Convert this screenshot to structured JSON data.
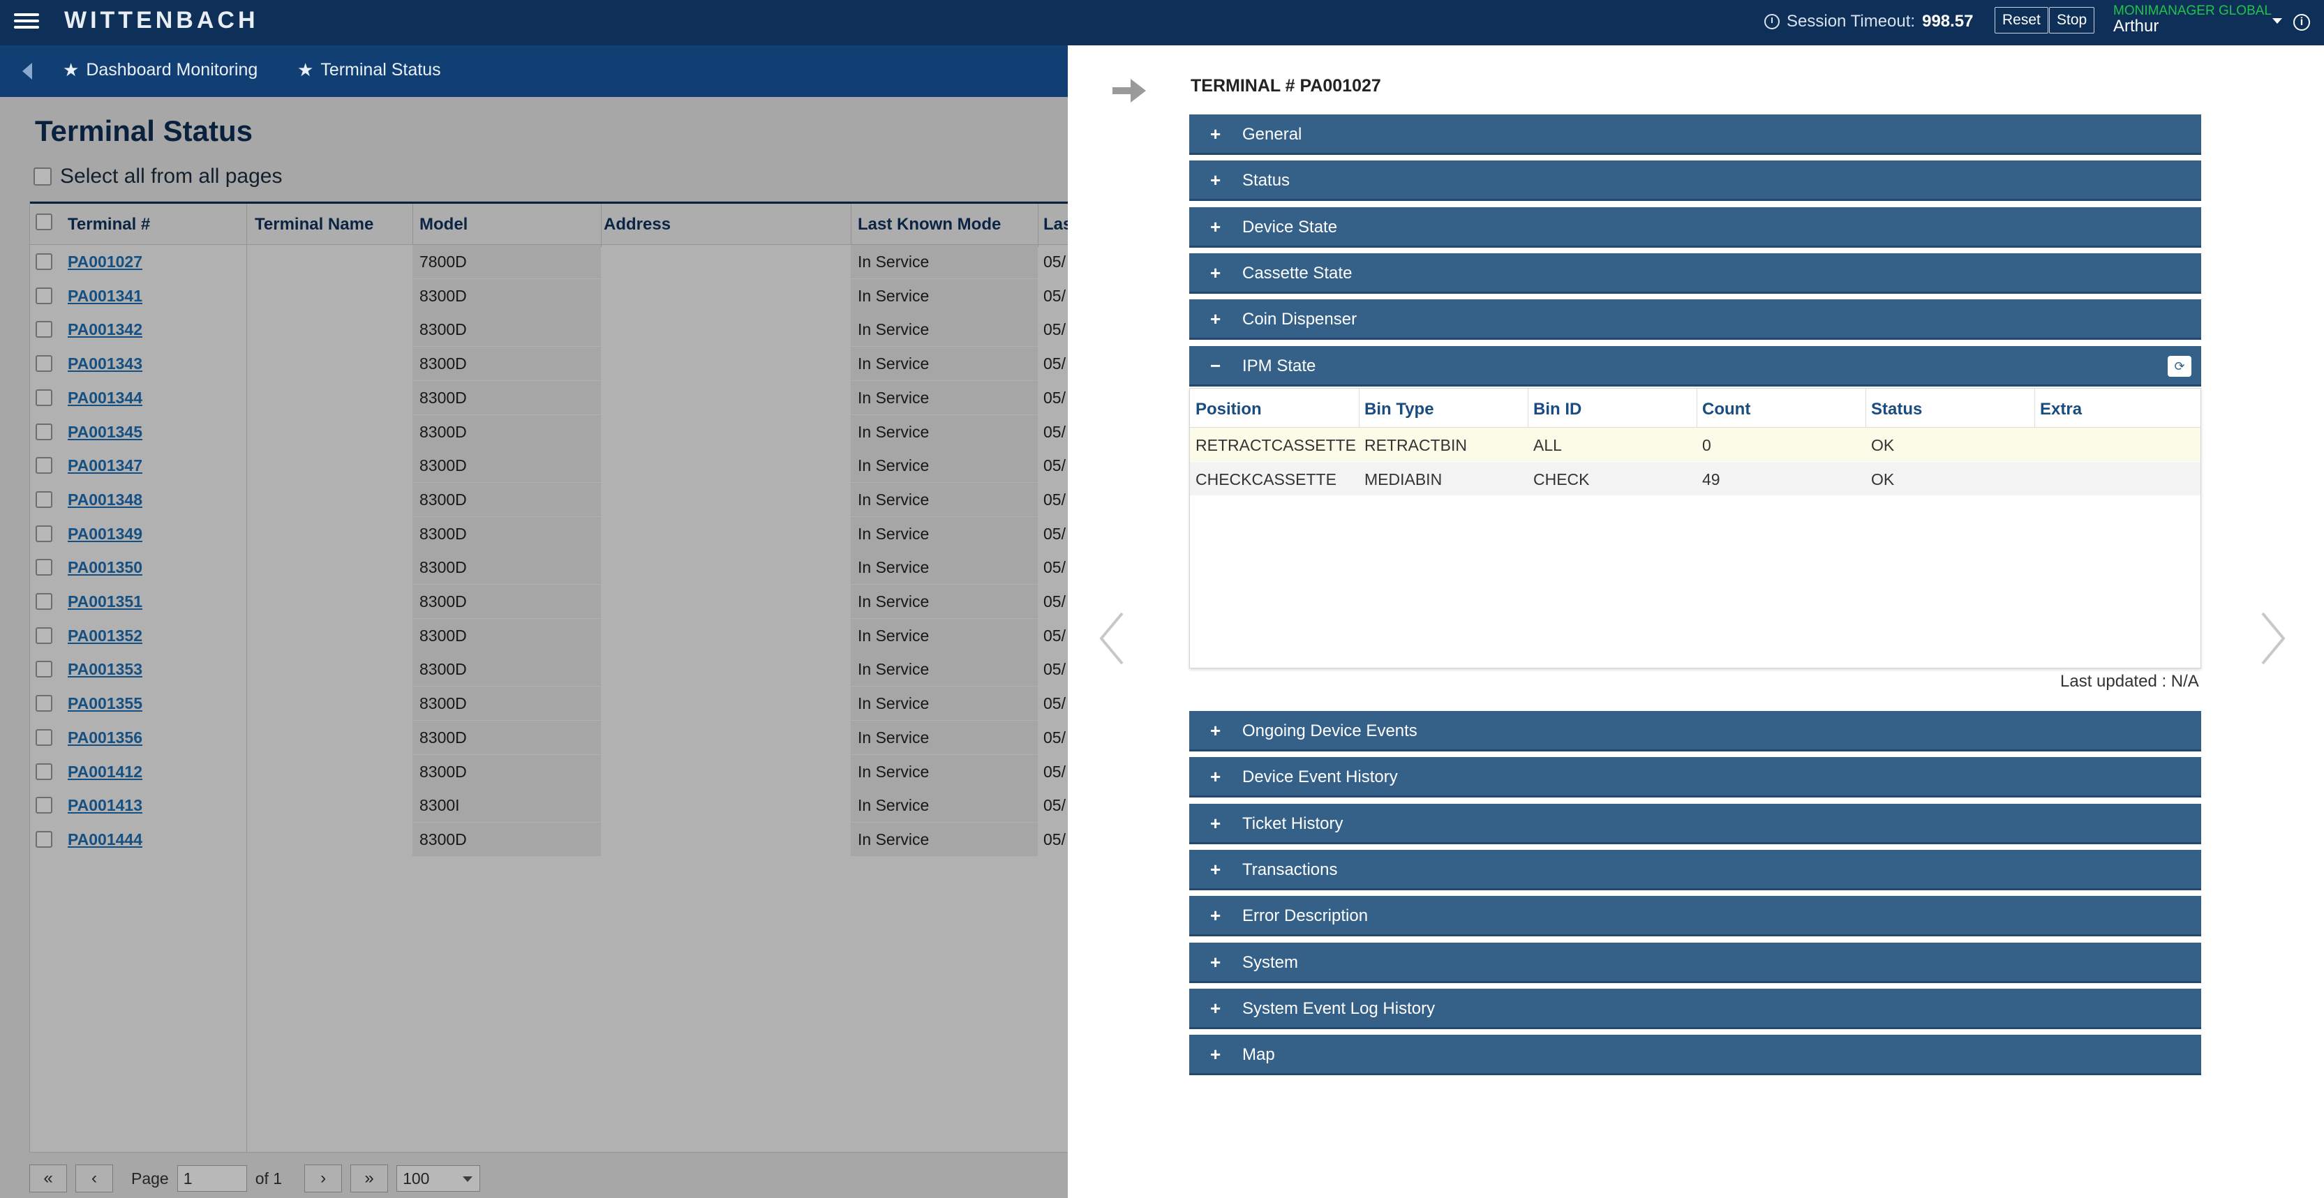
{
  "header": {
    "logo": "WITTENBACH",
    "session_label": "Session Timeout:",
    "session_value": "998.57",
    "reset": "Reset",
    "stop": "Stop",
    "org": "MONIMANAGER GLOBAL",
    "user": "Arthur"
  },
  "breadcrumb": [
    "Dashboard Monitoring",
    "Terminal Status"
  ],
  "page": {
    "title": "Terminal Status",
    "select_all": "Select all from all pages"
  },
  "grid": {
    "columns": [
      "Terminal #",
      "Terminal Name",
      "Model",
      "Address",
      "Last Known Mode",
      "Las"
    ],
    "rows": [
      {
        "terminal": "PA001027",
        "model": "7800D",
        "mode": "In Service",
        "last": "05/"
      },
      {
        "terminal": "PA001341",
        "model": "8300D",
        "mode": "In Service",
        "last": "05/"
      },
      {
        "terminal": "PA001342",
        "model": "8300D",
        "mode": "In Service",
        "last": "05/"
      },
      {
        "terminal": "PA001343",
        "model": "8300D",
        "mode": "In Service",
        "last": "05/"
      },
      {
        "terminal": "PA001344",
        "model": "8300D",
        "mode": "In Service",
        "last": "05/"
      },
      {
        "terminal": "PA001345",
        "model": "8300D",
        "mode": "In Service",
        "last": "05/"
      },
      {
        "terminal": "PA001347",
        "model": "8300D",
        "mode": "In Service",
        "last": "05/"
      },
      {
        "terminal": "PA001348",
        "model": "8300D",
        "mode": "In Service",
        "last": "05/"
      },
      {
        "terminal": "PA001349",
        "model": "8300D",
        "mode": "In Service",
        "last": "05/"
      },
      {
        "terminal": "PA001350",
        "model": "8300D",
        "mode": "In Service",
        "last": "05/"
      },
      {
        "terminal": "PA001351",
        "model": "8300D",
        "mode": "In Service",
        "last": "05/"
      },
      {
        "terminal": "PA001352",
        "model": "8300D",
        "mode": "In Service",
        "last": "05/"
      },
      {
        "terminal": "PA001353",
        "model": "8300D",
        "mode": "In Service",
        "last": "05/"
      },
      {
        "terminal": "PA001355",
        "model": "8300D",
        "mode": "In Service",
        "last": "05/"
      },
      {
        "terminal": "PA001356",
        "model": "8300D",
        "mode": "In Service",
        "last": "05/"
      },
      {
        "terminal": "PA001412",
        "model": "8300D",
        "mode": "In Service",
        "last": "05/"
      },
      {
        "terminal": "PA001413",
        "model": "8300I",
        "mode": "In Service",
        "last": "05/"
      },
      {
        "terminal": "PA001444",
        "model": "8300D",
        "mode": "In Service",
        "last": "05/"
      }
    ]
  },
  "pager": {
    "first": "«",
    "prev": "‹",
    "page_label": "Page",
    "page_value": "1",
    "of": "of 1",
    "next": "›",
    "last": "»",
    "page_size": "100"
  },
  "panel": {
    "title": "TERMINAL # PA001027",
    "sections_top": [
      "General",
      "Status",
      "Device State",
      "Cassette State",
      "Coin Dispenser"
    ],
    "ipm": {
      "label": "IPM State",
      "columns": [
        "Position",
        "Bin Type",
        "Bin ID",
        "Count",
        "Status",
        "Extra"
      ],
      "rows": [
        [
          "RETRACTCASSETTE",
          "RETRACTBIN",
          "ALL",
          "0",
          "OK",
          ""
        ],
        [
          "CHECKCASSETTE",
          "MEDIABIN",
          "CHECK",
          "49",
          "OK",
          ""
        ]
      ],
      "last_updated": "Last updated : N/A"
    },
    "sections_bottom": [
      "Ongoing Device Events",
      "Device Event History",
      "Ticket History",
      "Transactions",
      "Error Description",
      "System",
      "System Event Log History",
      "Map"
    ]
  }
}
